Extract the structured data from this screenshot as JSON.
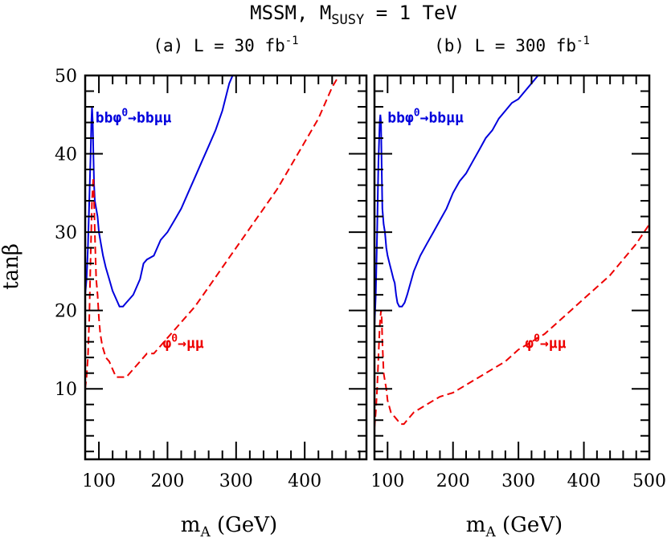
{
  "figure": {
    "title": "MSSM, M",
    "title_sub": "SUSY",
    "title_tail": " = 1 TeV",
    "ylabel": "tanβ",
    "xlabel": "m",
    "xlabel_sub": "A",
    "xlabel_tail": " (GeV)"
  },
  "chart_data": [
    {
      "type": "line",
      "title": "(a) L = 30 fb",
      "title_sup": "-1",
      "xlim": [
        80,
        490
      ],
      "ylim": [
        1,
        50
      ],
      "x_ticks": [
        100,
        200,
        300,
        400
      ],
      "y_ticks": [
        10,
        20,
        30,
        40,
        50
      ],
      "show_y_labels": true,
      "series": [
        {
          "name": "bbφ0→bbμμ",
          "color": "#0000dd",
          "dash": "solid",
          "label_prefix": "bbφ",
          "label_sup": "0",
          "label_suffix": "→bbμμ",
          "label_at": [
            95,
            44
          ],
          "x": [
            80,
            82,
            84,
            86,
            88,
            89,
            90,
            91,
            92,
            93,
            94,
            96,
            98,
            100,
            103,
            106,
            110,
            115,
            120,
            125,
            130,
            135,
            140,
            150,
            160,
            165,
            170,
            180,
            190,
            200,
            210,
            220,
            230,
            240,
            250,
            260,
            270,
            280,
            290,
            295
          ],
          "y": [
            22,
            24,
            28,
            34,
            40,
            44,
            46,
            44,
            40,
            36,
            34,
            33,
            32,
            30,
            28.5,
            27,
            25.5,
            24,
            22.5,
            21.5,
            20.5,
            20.5,
            21,
            22,
            24,
            26,
            26.5,
            27,
            29,
            30,
            31.5,
            33,
            35,
            37,
            39,
            41,
            43,
            45.5,
            49,
            50
          ]
        },
        {
          "name": "φ0→μμ",
          "color": "#ee0000",
          "dash": "dashed",
          "label_prefix": "φ",
          "label_sup": "0",
          "label_suffix": "→μμ",
          "label_at": [
            193,
            15.2
          ],
          "x": [
            80,
            82,
            84,
            86,
            88,
            90,
            92,
            93,
            94,
            95,
            96,
            98,
            100,
            102,
            105,
            110,
            115,
            120,
            125,
            130,
            140,
            150,
            160,
            170,
            180,
            190,
            200,
            220,
            240,
            260,
            280,
            300,
            320,
            340,
            360,
            380,
            400,
            420,
            440,
            450
          ],
          "y": [
            10,
            11.5,
            14,
            19,
            27,
            34,
            37,
            34,
            30,
            27,
            24,
            22,
            19,
            17,
            15.5,
            14,
            13.5,
            12.5,
            11.5,
            11.5,
            11.5,
            12.5,
            13.5,
            14.5,
            14.5,
            15.5,
            16.5,
            18.5,
            20.5,
            23,
            25.5,
            28,
            30.5,
            33,
            35.5,
            38.5,
            41.5,
            44.5,
            48.5,
            50
          ]
        }
      ]
    },
    {
      "type": "line",
      "title": "(b) L = 300 fb",
      "title_sup": "-1",
      "xlim": [
        80,
        500
      ],
      "ylim": [
        1,
        50
      ],
      "x_ticks": [
        100,
        200,
        300,
        400,
        500
      ],
      "y_ticks": [
        10,
        20,
        30,
        40,
        50
      ],
      "show_y_labels": false,
      "series": [
        {
          "name": "bbφ0→bbμμ",
          "color": "#0000dd",
          "dash": "solid",
          "label_prefix": "bbφ",
          "label_sup": "0",
          "label_suffix": "→bbμμ",
          "label_at": [
            100,
            44
          ],
          "x": [
            80,
            82,
            84,
            86,
            88,
            89,
            90,
            91,
            92,
            94,
            96,
            98,
            100,
            103,
            106,
            109,
            111,
            113,
            115,
            118,
            122,
            126,
            130,
            135,
            140,
            150,
            160,
            170,
            180,
            190,
            200,
            210,
            220,
            230,
            240,
            250,
            260,
            270,
            280,
            290,
            300,
            310,
            320,
            330,
            332
          ],
          "y": [
            18,
            22,
            30,
            39,
            44,
            45,
            44,
            38,
            33,
            31,
            30,
            28,
            27,
            26,
            25,
            24,
            23.5,
            22,
            21,
            20.5,
            20.5,
            21,
            22,
            23.5,
            25,
            27,
            28.5,
            30,
            31.5,
            33,
            35,
            36.5,
            37.5,
            39,
            40.5,
            42,
            43,
            44.5,
            45.5,
            46.5,
            47,
            48,
            49,
            50,
            50
          ]
        },
        {
          "name": "φ0→μμ",
          "color": "#ee0000",
          "dash": "dashed",
          "label_prefix": "φ",
          "label_sup": "0",
          "label_suffix": "→μμ",
          "label_at": [
            310,
            15.2
          ],
          "x": [
            80,
            82,
            84,
            86,
            88,
            90,
            91,
            92,
            93,
            94,
            96,
            98,
            100,
            105,
            110,
            115,
            120,
            125,
            130,
            140,
            150,
            160,
            170,
            180,
            200,
            220,
            240,
            260,
            280,
            300,
            320,
            340,
            360,
            380,
            400,
            420,
            440,
            460,
            480,
            500
          ],
          "y": [
            5,
            7,
            10,
            14,
            18,
            20,
            19,
            16,
            14,
            12,
            11,
            10,
            8.5,
            7,
            6.5,
            6,
            5.5,
            5.5,
            6,
            7,
            7.5,
            8,
            8.5,
            9,
            9.5,
            10.5,
            11.5,
            12.5,
            13.5,
            15,
            16,
            17,
            18.5,
            20,
            21.5,
            23,
            24.5,
            26.5,
            28.5,
            31
          ]
        }
      ]
    }
  ]
}
